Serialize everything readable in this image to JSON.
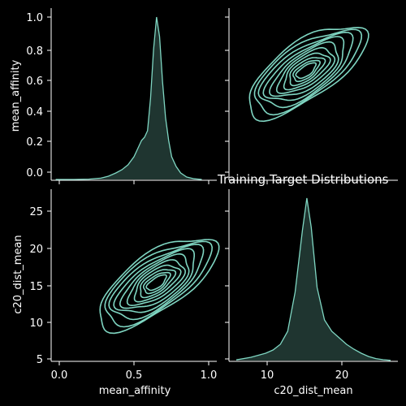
{
  "title": "Training Target Distributions",
  "colors": {
    "background": "#000000",
    "foreground": "#ffffff",
    "accent": "#7fd6c2",
    "fill": "#223b35"
  },
  "chart_data": {
    "type": "pairplot",
    "variables": [
      "mean_affinity",
      "c20_dist_mean"
    ],
    "grid": false,
    "panels": [
      {
        "id": "mean_affinity_kde",
        "type": "kde",
        "variable": "mean_affinity",
        "xlim": [
          -0.05,
          1.05
        ],
        "ylim_display": [
          -0.05,
          1.05
        ],
        "yticks": [
          "0.0",
          "0.2",
          "0.4",
          "0.6",
          "0.8",
          "1.0"
        ],
        "curve": [
          [
            -0.02,
            0
          ],
          [
            0.1,
            0
          ],
          [
            0.2,
            0.002
          ],
          [
            0.28,
            0.008
          ],
          [
            0.33,
            0.02
          ],
          [
            0.38,
            0.04
          ],
          [
            0.42,
            0.06
          ],
          [
            0.46,
            0.09
          ],
          [
            0.5,
            0.14
          ],
          [
            0.53,
            0.2
          ],
          [
            0.55,
            0.24
          ],
          [
            0.57,
            0.26
          ],
          [
            0.59,
            0.3
          ],
          [
            0.61,
            0.5
          ],
          [
            0.63,
            0.8
          ],
          [
            0.65,
            1.0
          ],
          [
            0.67,
            0.88
          ],
          [
            0.69,
            0.6
          ],
          [
            0.71,
            0.38
          ],
          [
            0.73,
            0.24
          ],
          [
            0.75,
            0.14
          ],
          [
            0.78,
            0.08
          ],
          [
            0.81,
            0.04
          ],
          [
            0.85,
            0.015
          ],
          [
            0.9,
            0.004
          ],
          [
            0.95,
            0
          ]
        ]
      },
      {
        "id": "c20_dist_mean_kde",
        "type": "kde",
        "variable": "c20_dist_mean",
        "xlim": [
          5,
          28
        ],
        "xticks": [
          "10",
          "20"
        ],
        "curve": [
          [
            6,
            0.004
          ],
          [
            8,
            0.02
          ],
          [
            10,
            0.045
          ],
          [
            11,
            0.065
          ],
          [
            12,
            0.1
          ],
          [
            13,
            0.18
          ],
          [
            14,
            0.42
          ],
          [
            15,
            0.8
          ],
          [
            15.6,
            1.0
          ],
          [
            16.2,
            0.82
          ],
          [
            17,
            0.45
          ],
          [
            18,
            0.25
          ],
          [
            19,
            0.18
          ],
          [
            20,
            0.14
          ],
          [
            21,
            0.1
          ],
          [
            22,
            0.07
          ],
          [
            23,
            0.045
          ],
          [
            24,
            0.025
          ],
          [
            25,
            0.012
          ],
          [
            26,
            0.005
          ],
          [
            27,
            0.001
          ]
        ]
      },
      {
        "id": "joint_kde_affinity_dist",
        "type": "kde2d",
        "x": "mean_affinity",
        "y": "c20_dist_mean",
        "xlim": [
          -0.05,
          1.05
        ],
        "ylim": [
          5,
          28
        ],
        "xticks": [
          "0.0",
          "0.5",
          "1.0"
        ],
        "yticks": [
          "5",
          "10",
          "15",
          "20",
          "25"
        ],
        "center": [
          0.65,
          15.5
        ],
        "levels": 10
      },
      {
        "id": "joint_kde_dist_affinity",
        "type": "kde2d",
        "x": "c20_dist_mean",
        "y": "mean_affinity",
        "xlim": [
          5,
          28
        ],
        "ylim": [
          -0.05,
          1.05
        ],
        "center": [
          15.5,
          0.65
        ],
        "levels": 10
      }
    ],
    "xlabels": [
      "mean_affinity",
      "c20_dist_mean"
    ],
    "ylabels": [
      "mean_affinity",
      "c20_dist_mean"
    ]
  }
}
